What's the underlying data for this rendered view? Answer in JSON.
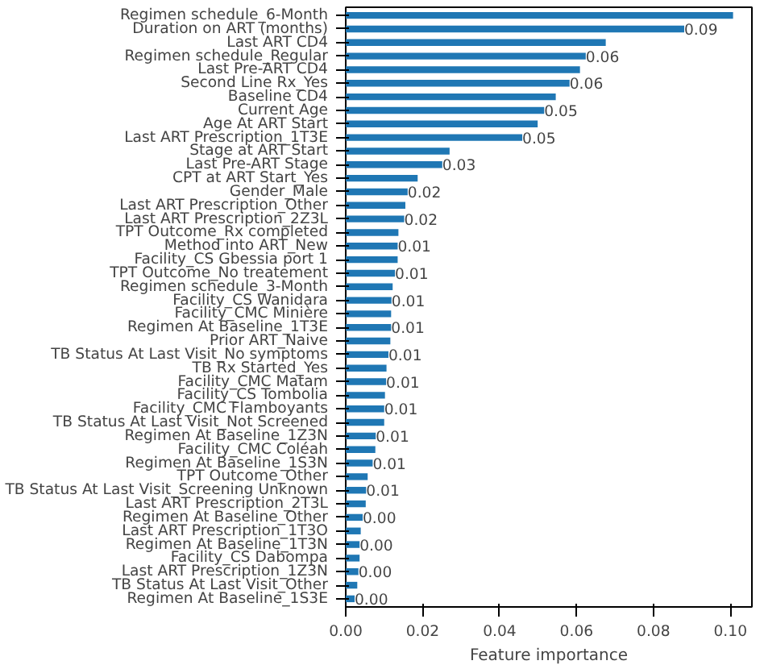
{
  "chart_data": {
    "type": "bar",
    "orientation": "horizontal",
    "xlabel": "Feature importance",
    "categories": [
      "Regimen schedule_6-Month",
      "Duration on ART (months)",
      "Last ART CD4",
      "Regimen schedule_Regular",
      "Last Pre-ART CD4",
      "Second Line Rx_Yes",
      "Baseline CD4",
      "Current Age",
      "Age At ART Start",
      "Last ART Prescription_1T3E",
      "Stage at ART Start",
      "Last Pre-ART Stage",
      "CPT at ART Start_Yes",
      "Gender_Male",
      "Last ART Prescription_Other",
      "Last ART Prescription_2Z3L",
      "TPT Outcome_Rx completed",
      "Method into ART_New",
      "Facility_CS Gbessia port 1",
      "TPT Outcome_No treatement",
      "Regimen schedule_3-Month",
      "Facility_CS Wanidara",
      "Facility_CMC Minière",
      "Regimen At Baseline_1T3E",
      "Prior ART_Naive",
      "TB Status At Last Visit_No symptoms",
      "TB Rx Started_Yes",
      "Facility_CMC Matam",
      "Facility_CS Tombolia",
      "Facility_CMC Flamboyants",
      "TB Status At Last Visit_Not Screened",
      "Regimen At Baseline_1Z3N",
      "Facility_CMC Coléah",
      "Regimen At Baseline_1S3N",
      "TPT Outcome_Other",
      "TB Status At Last Visit_Screening Unknown",
      "Last ART Prescription_2T3L",
      "Regimen At Baseline_Other",
      "Last ART Prescription_1T3O",
      "Regimen At Baseline_1T3N",
      "Facility_CS Dabompa",
      "Last ART Prescription_1Z3N",
      "TB Status At Last Visit_Other",
      "Regimen At Baseline_1S3E"
    ],
    "values": [
      0.1007,
      0.088,
      0.0676,
      0.0624,
      0.0609,
      0.0582,
      0.0546,
      0.0516,
      0.0499,
      0.0459,
      0.027,
      0.0251,
      0.0187,
      0.0161,
      0.0155,
      0.0152,
      0.0137,
      0.0135,
      0.0135,
      0.0128,
      0.0122,
      0.0119,
      0.0118,
      0.0118,
      0.0116,
      0.0111,
      0.0106,
      0.0105,
      0.0102,
      0.01,
      0.01,
      0.0078,
      0.0077,
      0.007,
      0.0057,
      0.0053,
      0.0052,
      0.0044,
      0.0039,
      0.0036,
      0.0036,
      0.0033,
      0.003,
      0.0023
    ],
    "value_labels": [
      null,
      "0.09",
      null,
      "0.06",
      null,
      "0.06",
      null,
      "0.05",
      null,
      "0.05",
      null,
      "0.03",
      null,
      "0.02",
      null,
      "0.02",
      null,
      "0.01",
      null,
      "0.01",
      null,
      "0.01",
      null,
      "0.01",
      null,
      "0.01",
      null,
      "0.01",
      null,
      "0.01",
      null,
      "0.01",
      null,
      "0.01",
      null,
      "0.01",
      null,
      "0.00",
      null,
      "0.00",
      null,
      "0.00",
      null,
      "0.00"
    ],
    "color": "#1f77b4",
    "xlim": [
      0,
      0.1056
    ],
    "xticks": [
      {
        "value": 0,
        "label": "0.00"
      },
      {
        "value": 0.02,
        "label": "0.02"
      },
      {
        "value": 0.04,
        "label": "0.04"
      },
      {
        "value": 0.06,
        "label": "0.06"
      },
      {
        "value": 0.08,
        "label": "0.08"
      },
      {
        "value": 0.1,
        "label": "0.10"
      }
    ],
    "grid": false
  }
}
